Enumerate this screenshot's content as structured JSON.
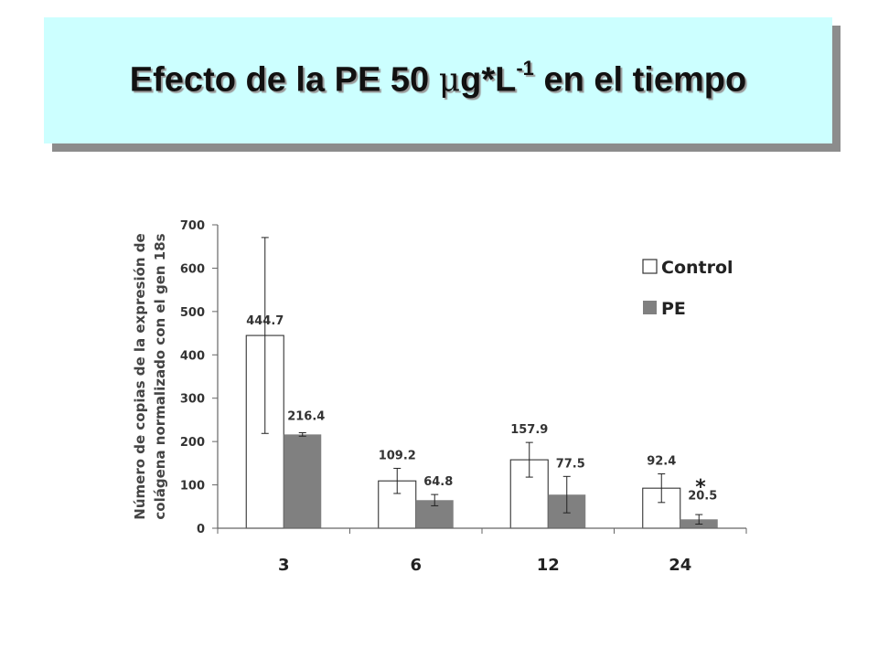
{
  "slide": {
    "title_part1": "Efecto de la PE 50 ",
    "title_mu": "μ",
    "title_part2": "g*L",
    "title_sup": "-1",
    "title_part3": " en el tiempo"
  },
  "chart_data": {
    "type": "bar",
    "categories": [
      "3",
      "6",
      "12",
      "24"
    ],
    "series": [
      {
        "name": "Control",
        "color": "#ffffff",
        "values": [
          444.7,
          109.2,
          157.9,
          92.4
        ],
        "value_labels": [
          "444.7",
          "109.2",
          "157.9",
          "92.4"
        ],
        "error": [
          226,
          29,
          40,
          33
        ]
      },
      {
        "name": "PE",
        "color": "#808080",
        "values": [
          216.4,
          64.8,
          77.5,
          20.5
        ],
        "value_labels": [
          "216.4",
          "64.8",
          "77.5",
          "20.5"
        ],
        "error": [
          4,
          13,
          42,
          11
        ]
      }
    ],
    "ylabel_lines": [
      "Número de copias de la expresión de",
      "colágena normalizado con el gen 18s"
    ],
    "ylim": [
      0,
      700
    ],
    "yticks": [
      0,
      100,
      200,
      300,
      400,
      500,
      600,
      700
    ],
    "ytick_labels": [
      "0",
      "100",
      "200",
      "300",
      "400",
      "500",
      "600",
      "700"
    ],
    "legend_position": "top-right",
    "grid": false,
    "annotation": {
      "text": "*",
      "category": "24"
    }
  }
}
